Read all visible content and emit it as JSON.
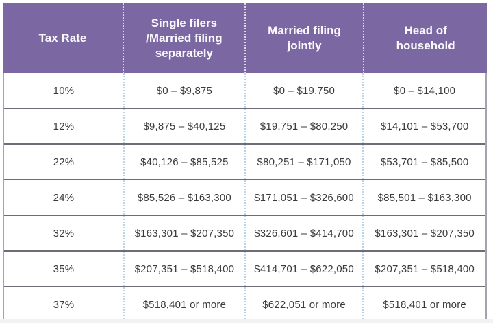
{
  "chart_data": {
    "type": "table",
    "columns": [
      "Tax Rate",
      "Single filers /Married filing separately",
      "Married filing jointly",
      "Head of household"
    ],
    "rows": [
      [
        "10%",
        "$0 – $9,875",
        "$0 – $19,750",
        "$0 – $14,100"
      ],
      [
        "12%",
        "$9,875 – $40,125",
        "$19,751 – $80,250",
        "$14,101 – $53,700"
      ],
      [
        "22%",
        "$40,126 – $85,525",
        "$80,251 – $171,050",
        "$53,701 – $85,500"
      ],
      [
        "24%",
        "$85,526 – $163,300",
        "$171,051 – $326,600",
        "$85,501 – $163,300"
      ],
      [
        "32%",
        "$163,301 – $207,350",
        "$326,601 – $414,700",
        "$163,301 – $207,350"
      ],
      [
        "35%",
        "$207,351 – $518,400",
        "$414,701 – $622,050",
        "$207,351 – $518,400"
      ],
      [
        "37%",
        "$518,401 or more",
        "$622,051 or more",
        "$518,401 or more"
      ]
    ]
  },
  "colors": {
    "purple": "#7b68a3",
    "header-text": "#faf8fc",
    "body-text": "#3b3b3d",
    "row-divider": "#6f6c7a",
    "col-divider": "#b7d5e7",
    "outer-border": "#a6a2af"
  }
}
